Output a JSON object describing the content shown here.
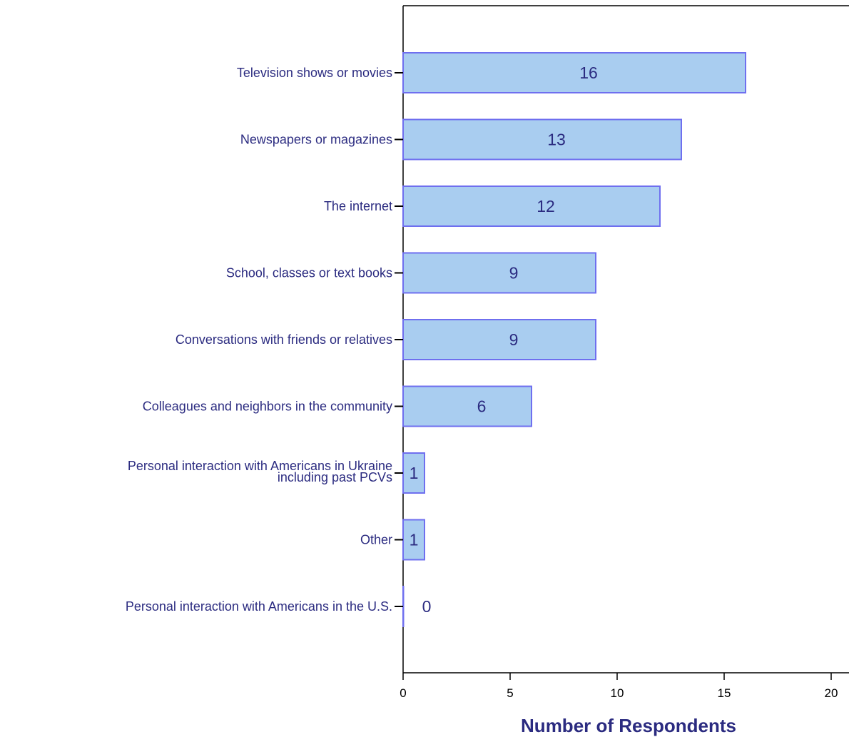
{
  "chart_data": {
    "type": "bar",
    "orientation": "horizontal",
    "categories": [
      "Television shows or movies",
      "Newspapers or magazines",
      "The internet",
      "School, classes or text books",
      "Conversations with friends or relatives",
      "Colleagues and neighbors in the community",
      "Personal interaction with Americans in Ukraine including past PCVs",
      "Other",
      "Personal interaction with Americans in the U.S."
    ],
    "values": [
      16,
      13,
      12,
      9,
      9,
      6,
      1,
      1,
      0
    ],
    "data_labels": [
      "16",
      "13",
      "12",
      "9",
      "9",
      "6",
      "1",
      "1",
      "0"
    ],
    "title": "",
    "xlabel": "Number of Respondents",
    "ylabel": "",
    "xlim": [
      0,
      20
    ],
    "xticks": [
      "0",
      "5",
      "10",
      "15",
      "20"
    ],
    "grid": false,
    "legend": "none",
    "colors": {
      "bar_fill": "#a9cdf0",
      "bar_stroke": "#6f6fef",
      "label_text": "#2b2b80"
    }
  }
}
